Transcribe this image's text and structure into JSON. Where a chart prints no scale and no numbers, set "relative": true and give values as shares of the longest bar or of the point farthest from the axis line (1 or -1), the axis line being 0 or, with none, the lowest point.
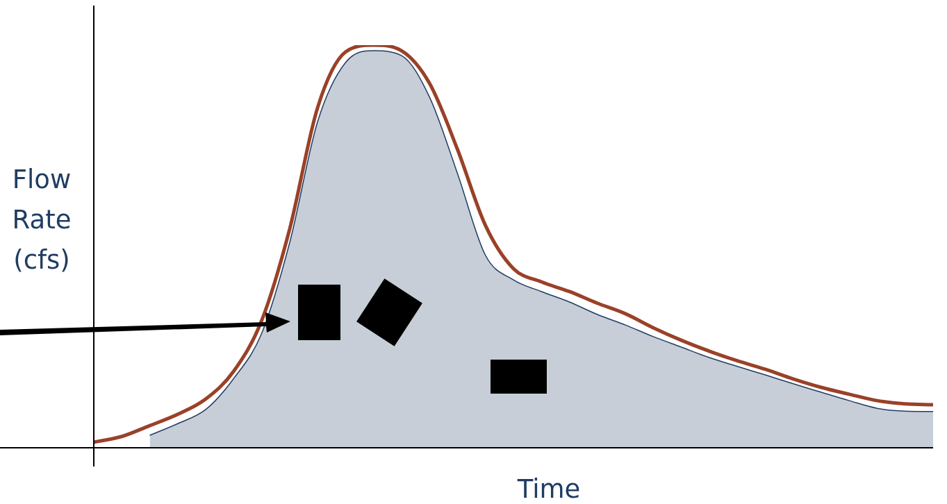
{
  "chart_data": {
    "type": "line",
    "xlabel": "Time",
    "ylabel": "Flow Rate (cfs)",
    "relative": true,
    "legend": false,
    "marker": "none",
    "categories": [
      null,
      null,
      null,
      null,
      null,
      null,
      null,
      null,
      null,
      null,
      null,
      null,
      null,
      null,
      null,
      null,
      null,
      null,
      null,
      null,
      null,
      null,
      null,
      null,
      null,
      null,
      null,
      null,
      null,
      null,
      null
    ],
    "series": [
      {
        "type": "area",
        "color": "#1f3d63",
        "values": [
          null,
          null,
          0.031,
          0.06,
          0.095,
          0.172,
          0.284,
          0.509,
          0.81,
          0.957,
          0.986,
          0.974,
          0.871,
          0.681,
          0.478,
          0.417,
          0.388,
          0.362,
          0.331,
          0.305,
          0.276,
          0.25,
          0.224,
          0.202,
          0.181,
          0.159,
          0.138,
          0.117,
          0.098,
          0.091,
          0.09
        ]
      },
      {
        "type": "line",
        "color": "#9a4128",
        "values": [
          0.014,
          0.028,
          0.055,
          0.083,
          0.121,
          0.19,
          0.316,
          0.543,
          0.845,
          0.983,
          1.0,
          0.986,
          0.905,
          0.741,
          0.552,
          0.445,
          0.412,
          0.388,
          0.359,
          0.333,
          0.298,
          0.267,
          0.24,
          0.216,
          0.195,
          0.171,
          0.15,
          0.133,
          0.117,
          0.109,
          0.107
        ]
      }
    ]
  }
}
